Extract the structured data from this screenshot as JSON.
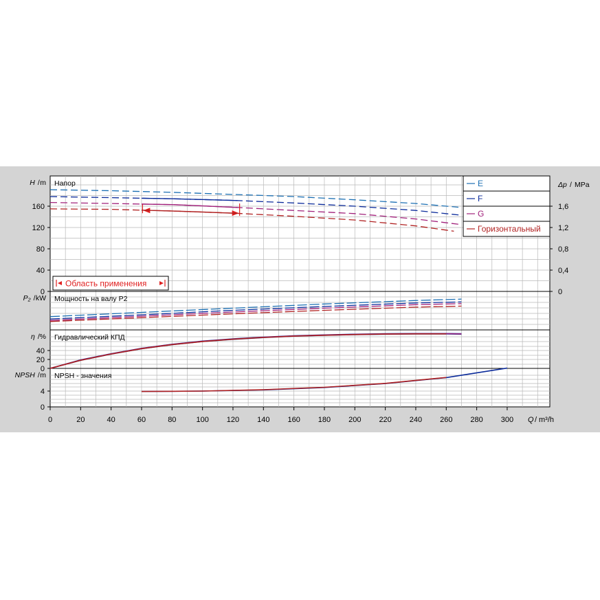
{
  "chart_data": {
    "type": "line",
    "x_axis": {
      "label_symbol": "Q",
      "label_unit": "m³/h",
      "range": [
        0,
        328
      ],
      "ticks": [
        0,
        20,
        40,
        60,
        80,
        100,
        120,
        140,
        160,
        180,
        200,
        220,
        240,
        260,
        280,
        300
      ]
    },
    "legend": {
      "placement": "top-right",
      "entries": [
        {
          "name": "E",
          "color": "#1b6fb3"
        },
        {
          "name": "F",
          "color": "#0a2a9a"
        },
        {
          "name": "G",
          "color": "#a0207a"
        },
        {
          "name": "Горизонтальный",
          "color": "#b02020"
        }
      ]
    },
    "panels": [
      {
        "id": "head",
        "title": "Напор",
        "y_symbol": "H",
        "y_unit": "m",
        "y_range": [
          0,
          200
        ],
        "y_ticks": [
          0,
          40,
          80,
          120,
          160
        ],
        "y2_symbol": "Δp",
        "y2_unit": "MPa",
        "y2_range": [
          0,
          2.0
        ],
        "y2_ticks": [
          "0",
          "0,4",
          "0,8",
          "1,2",
          "1,6"
        ],
        "application_range_label": "Область применения",
        "series": [
          {
            "name": "E",
            "color": "#1b6fb3",
            "x": [
              0,
              40,
              80,
              120,
              160,
              200,
              240,
              268
            ],
            "y": [
              191,
              189,
              186,
              182,
              178,
              172,
              165,
              158
            ]
          },
          {
            "name": "F",
            "color": "#0a2a9a",
            "x": [
              0,
              40,
              80,
              120,
              160,
              200,
              240,
              270
            ],
            "y": [
              178,
              176,
              174,
              171,
              166,
              160,
              152,
              143
            ]
          },
          {
            "name": "G",
            "color": "#a0207a",
            "x": [
              0,
              40,
              80,
              120,
              160,
              200,
              240,
              268
            ],
            "y": [
              167,
              165,
              163,
              158,
              152,
              146,
              136,
              126
            ]
          },
          {
            "name": "Горизонтальный",
            "color": "#b02020",
            "x": [
              0,
              40,
              80,
              120,
              160,
              200,
              240,
              265
            ],
            "y": [
              155,
              154,
              151,
              147,
              141,
              134,
              123,
              113
            ]
          }
        ],
        "markers": [
          {
            "color": "#e02020",
            "x_from": 60,
            "x_to": 123,
            "x_arrow": 62,
            "y_arrow": 152
          },
          {
            "color": "#e02020",
            "x_from": 60,
            "x_to": 123,
            "x_arrow": 123,
            "y_arrow": 147
          }
        ]
      },
      {
        "id": "power",
        "title": "Мощность на валу P2",
        "y_symbol": "P₂",
        "y_unit": "kW",
        "y_range": [
          0,
          110
        ],
        "y_ticks": [],
        "series": [
          {
            "name": "E",
            "color": "#1b6fb3",
            "x": [
              0,
              60,
              120,
              180,
              240,
              270
            ],
            "y": [
              38,
              50,
              62,
              74,
              84,
              88
            ]
          },
          {
            "name": "F",
            "color": "#0a2a9a",
            "x": [
              0,
              60,
              120,
              180,
              240,
              270
            ],
            "y": [
              31,
              43,
              56,
              67,
              77,
              80
            ]
          },
          {
            "name": "G",
            "color": "#a0207a",
            "x": [
              0,
              60,
              120,
              180,
              240,
              270
            ],
            "y": [
              27,
              39,
              51,
              62,
              72,
              75
            ]
          },
          {
            "name": "Горизонтальный",
            "color": "#b02020",
            "x": [
              0,
              60,
              120,
              180,
              240,
              270
            ],
            "y": [
              24,
              35,
              46,
              56,
              65,
              68
            ]
          }
        ]
      },
      {
        "id": "efficiency",
        "title": "Гидравлический КПД",
        "y_symbol": "η",
        "y_unit": "%",
        "y_range": [
          0,
          85
        ],
        "y_ticks": [
          0,
          20,
          40
        ],
        "series": [
          {
            "name": "E",
            "color": "#1b6fb3",
            "x": [
              0,
              20,
              40,
              60,
              80,
              100,
              120,
              140,
              160,
              180,
              200,
              220,
              240,
              260,
              270
            ],
            "y": [
              0,
              18,
              32,
              44,
              53,
              60,
              65,
              69,
              72,
              74,
              75.5,
              76.5,
              77,
              77,
              76.5
            ]
          },
          {
            "name": "F",
            "color": "#0a2a9a",
            "x": [
              0,
              20,
              40,
              60,
              80,
              100,
              120,
              140,
              160,
              180,
              200,
              220,
              240,
              260,
              270
            ],
            "y": [
              0,
              19,
              33,
              45,
              54,
              61,
              66,
              70,
              73,
              75,
              76.5,
              77.5,
              78,
              78,
              77.5
            ]
          },
          {
            "name": "G",
            "color": "#a0207a",
            "x": [
              0,
              20,
              40,
              60,
              80,
              100,
              120,
              140,
              160,
              180,
              200,
              220,
              240,
              260,
              270
            ],
            "y": [
              0,
              18.5,
              32.5,
              44.5,
              53.5,
              60.5,
              65.5,
              69.5,
              72.5,
              74.5,
              76,
              77,
              77.5,
              77.5,
              77
            ]
          },
          {
            "name": "Горизонтальный",
            "color": "#b02020",
            "x": [
              0,
              20,
              40,
              60,
              80,
              100,
              120,
              140,
              160,
              180,
              200,
              220,
              240,
              260
            ],
            "y": [
              0,
              18.2,
              32.2,
              44.2,
              53.2,
              60.2,
              65.2,
              69.2,
              72.2,
              74.2,
              75.7,
              76.7,
              77.2,
              77.2
            ]
          }
        ]
      },
      {
        "id": "npsh",
        "title": "NPSH - значения",
        "y_symbol": "NPSH",
        "y_unit": "m",
        "y_range": [
          0,
          12
        ],
        "y_ticks": [
          0,
          4
        ],
        "series": [
          {
            "name": "F",
            "color": "#0a2a9a",
            "x": [
              60,
              100,
              140,
              180,
              220,
              260,
              300
            ],
            "y": [
              3.9,
              4.0,
              4.3,
              4.9,
              5.9,
              7.4,
              9.8
            ]
          },
          {
            "name": "Горизонтальный",
            "color": "#b02020",
            "x": [
              60,
              100,
              140,
              180,
              220,
              260
            ],
            "y": [
              3.9,
              4.0,
              4.35,
              4.95,
              5.95,
              7.45
            ]
          }
        ]
      }
    ]
  }
}
